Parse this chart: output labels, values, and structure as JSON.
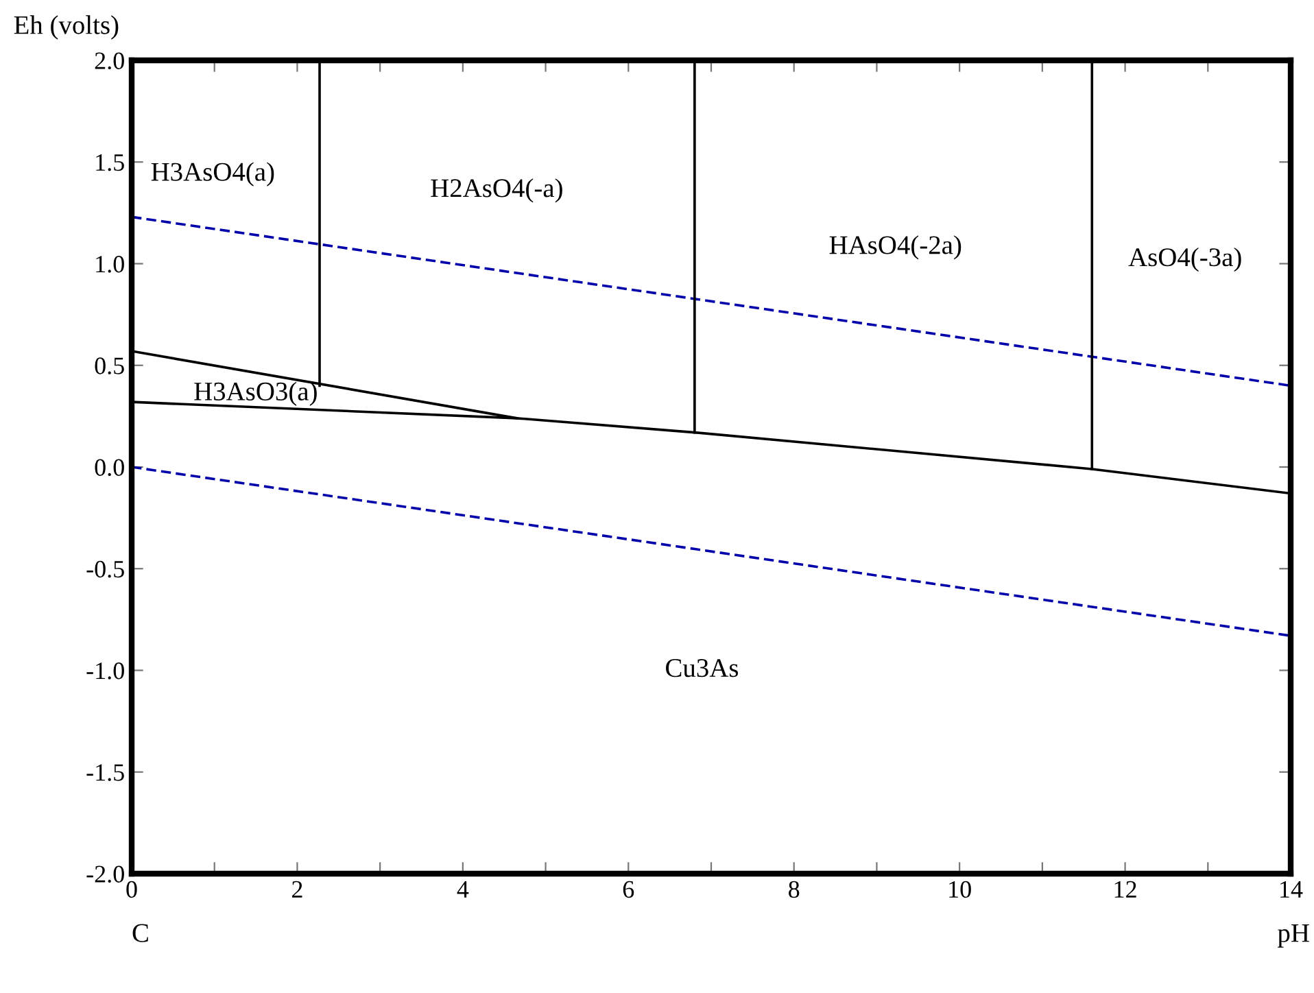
{
  "chart_data": {
    "type": "line",
    "xlabel": "pH",
    "ylabel": "Eh (volts)",
    "xlim": [
      0,
      14
    ],
    "ylim": [
      -2.0,
      2.0
    ],
    "xticks": [
      0,
      {
        "value": 1,
        "label": null
      },
      2,
      {
        "value": 3,
        "label": null
      },
      4,
      {
        "value": 5,
        "label": null
      },
      6,
      {
        "value": 7,
        "label": null
      },
      8,
      {
        "value": 9,
        "label": null
      },
      10,
      {
        "value": 11,
        "label": null
      },
      12,
      {
        "value": 13,
        "label": null
      },
      14
    ],
    "yticks": [
      {
        "value": -2.0,
        "label": "-2.0"
      },
      {
        "value": -1.5,
        "label": "-1.5"
      },
      {
        "value": -1.0,
        "label": "-1.0"
      },
      {
        "value": -0.5,
        "label": "-0.5"
      },
      {
        "value": 0.0,
        "label": "0.0"
      },
      {
        "value": 0.5,
        "label": "0.5"
      },
      {
        "value": 1.0,
        "label": "1.0"
      },
      {
        "value": 1.5,
        "label": "1.5"
      },
      {
        "value": 2.0,
        "label": "2.0"
      }
    ],
    "grid": false,
    "legend": false,
    "marker": "none",
    "series": [
      {
        "color": "#0000aa",
        "line_style": "dashed",
        "x": [
          0,
          14
        ],
        "values": [
          1.23,
          0.4
        ]
      },
      {
        "color": "#0000aa",
        "line_style": "dashed",
        "x": [
          0,
          14
        ],
        "values": [
          0.0,
          -0.83
        ]
      },
      {
        "color": "#000000",
        "line_style": "solid",
        "x": [
          0,
          4.65
        ],
        "values": [
          0.57,
          0.24
        ]
      },
      {
        "color": "#000000",
        "line_style": "solid",
        "x": [
          0,
          4.65,
          6.8,
          11.6,
          14
        ],
        "values": [
          0.32,
          0.24,
          0.17,
          -0.01,
          -0.13
        ]
      },
      {
        "color": "#000000",
        "line_style": "solid",
        "x": [
          2.27,
          2.27
        ],
        "values": [
          0.4,
          2.0
        ]
      },
      {
        "color": "#000000",
        "line_style": "solid",
        "x": [
          6.8,
          6.8
        ],
        "values": [
          0.17,
          2.0
        ]
      },
      {
        "color": "#000000",
        "line_style": "solid",
        "x": [
          11.6,
          11.6
        ],
        "values": [
          -0.01,
          2.0
        ]
      }
    ],
    "annotations": [
      "H3AsO4(a)",
      "H2AsO4(-a)",
      "HAsO4(-2a)",
      "AsO4(-3a)",
      "H3AsO3(a)",
      "Cu3As",
      "C"
    ]
  }
}
